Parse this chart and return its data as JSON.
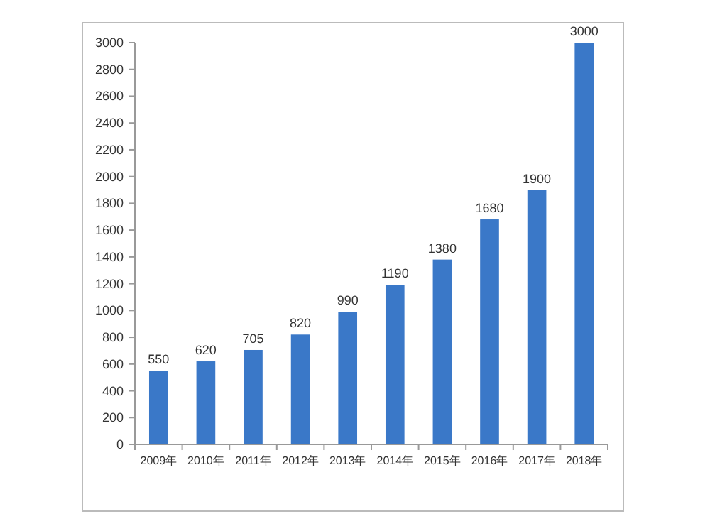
{
  "chart_data": {
    "type": "bar",
    "categories": [
      "2009年",
      "2010年",
      "2011年",
      "2012年",
      "2013年",
      "2014年",
      "2015年",
      "2016年",
      "2017年",
      "2018年"
    ],
    "values": [
      550,
      620,
      705,
      820,
      990,
      1190,
      1380,
      1680,
      1900,
      3000
    ],
    "color": "#3a78c8",
    "ylim": [
      0,
      3000
    ],
    "yticks": [
      0,
      200,
      400,
      600,
      800,
      1000,
      1200,
      1400,
      1600,
      1800,
      2000,
      2200,
      2400,
      2600,
      2800,
      3000
    ],
    "data_labels": true,
    "grid": false
  }
}
